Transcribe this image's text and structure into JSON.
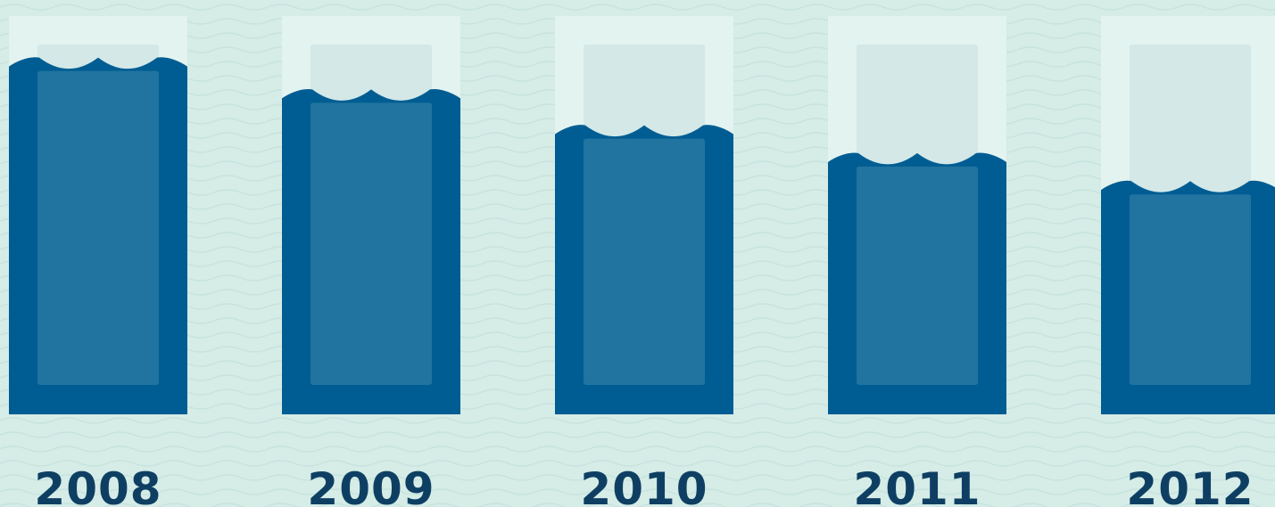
{
  "colors": {
    "background": "#d5ece7",
    "background_wave": "#c7e3dd",
    "container": "#e3f3ef",
    "container_inner": "#d3e8e7",
    "water": "#005d93",
    "water_inner": "#21749f",
    "label": "#0e3f63"
  },
  "chart_data": {
    "type": "bar",
    "categories": [
      "2008",
      "2009",
      "2010",
      "2011",
      "2012"
    ],
    "values": [
      88,
      80,
      71,
      64,
      57
    ],
    "ylim": [
      0,
      100
    ],
    "grid": false,
    "legend": "none"
  }
}
